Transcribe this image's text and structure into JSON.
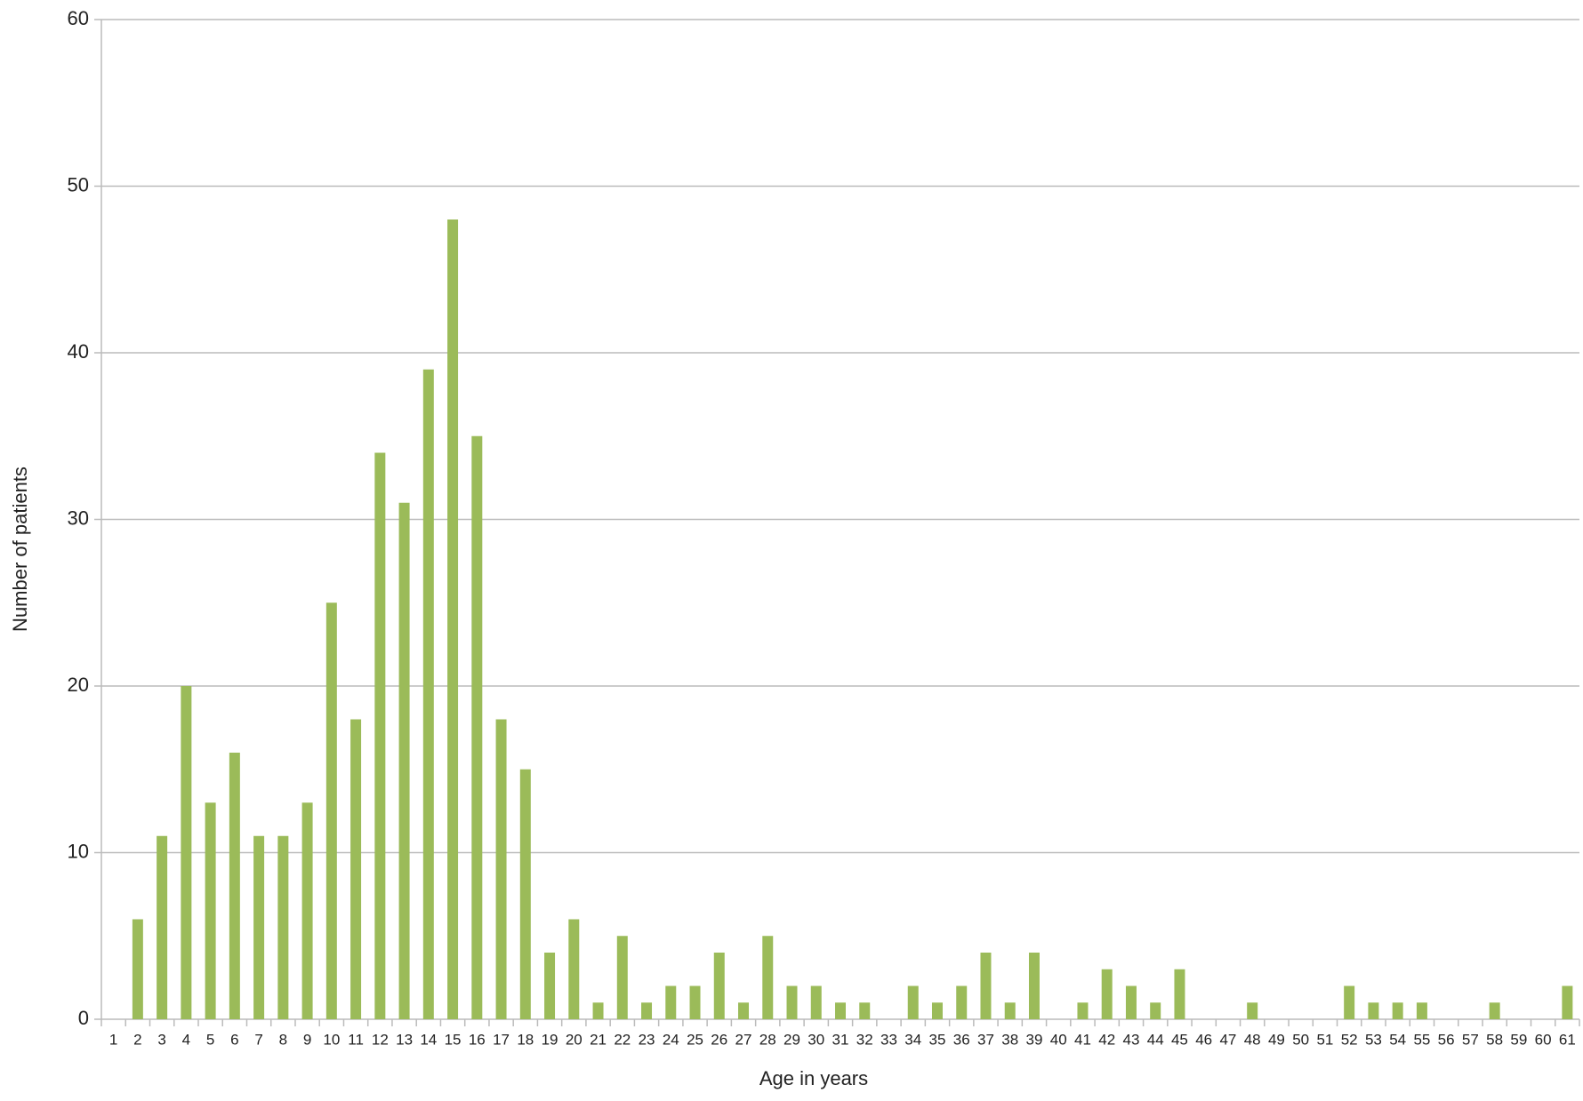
{
  "chart_data": {
    "type": "bar",
    "x_label": "Age in years",
    "y_label": "Number of patients",
    "categories": [
      "1",
      "2",
      "3",
      "4",
      "5",
      "6",
      "7",
      "8",
      "9",
      "10",
      "11",
      "12",
      "13",
      "14",
      "15",
      "16",
      "17",
      "18",
      "19",
      "20",
      "21",
      "22",
      "23",
      "24",
      "25",
      "26",
      "27",
      "28",
      "29",
      "30",
      "31",
      "32",
      "33",
      "34",
      "35",
      "36",
      "37",
      "38",
      "39",
      "40",
      "41",
      "42",
      "43",
      "44",
      "45",
      "46",
      "47",
      "48",
      "49",
      "50",
      "51",
      "52",
      "53",
      "54",
      "55",
      "56",
      "57",
      "58",
      "59",
      "60",
      "61"
    ],
    "values": [
      0,
      6,
      11,
      20,
      13,
      16,
      11,
      11,
      13,
      25,
      18,
      34,
      31,
      39,
      48,
      35,
      18,
      15,
      4,
      6,
      1,
      5,
      1,
      2,
      2,
      4,
      1,
      5,
      2,
      2,
      1,
      1,
      0,
      2,
      1,
      2,
      4,
      1,
      4,
      0,
      1,
      3,
      2,
      1,
      3,
      0,
      0,
      1,
      0,
      0,
      0,
      2,
      1,
      1,
      1,
      0,
      0,
      1,
      0,
      0,
      2
    ],
    "color": "#9bbb59",
    "ylim": [
      0,
      60
    ],
    "yticks": [
      0,
      10,
      20,
      30,
      40,
      50,
      60
    ],
    "grid": true
  }
}
